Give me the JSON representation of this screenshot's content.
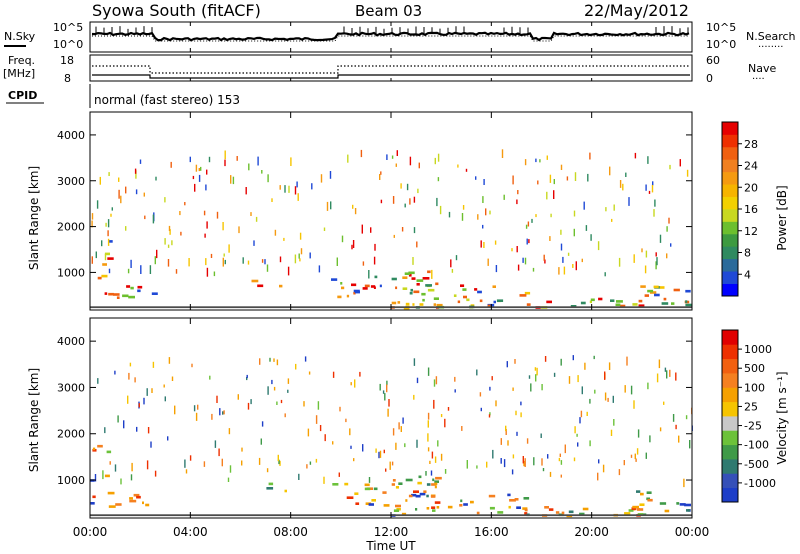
{
  "header": {
    "title_left": "Syowa South (fitACF)",
    "title_center": "Beam 03",
    "title_right": "22/May/2012"
  },
  "top_panels": {
    "nsky_label": "N.Sky",
    "nsearch_label": "N.Search",
    "nsearch_dots": "········",
    "freq_label": "Freq.",
    "freq_unit": "[MHz]",
    "nave_label": "Nave",
    "nave_dots": "····",
    "cpid_label": "CPID",
    "cpid_text": "normal (fast stereo) 153",
    "noise_ticks": [
      "10^5",
      "10^0"
    ],
    "freq_ticks": [
      "18",
      "8"
    ],
    "nave_ticks": [
      "60",
      "0"
    ]
  },
  "chart_data": [
    {
      "type": "heatmap",
      "name": "power",
      "ylabel": "Slant Range [km]",
      "yticks": [
        "1000",
        "2000",
        "3000",
        "4000"
      ],
      "ylim": [
        180,
        4500
      ],
      "colorbar": {
        "label": "Power [dB]",
        "ticks": [
          "4",
          "8",
          "12",
          "16",
          "20",
          "24",
          "28"
        ],
        "colors": [
          "#0000ff",
          "#1f49d6",
          "#2a6a9a",
          "#2f8a60",
          "#3d9a40",
          "#6cbf2e",
          "#c8d820",
          "#f2d000",
          "#f6b400",
          "#f59a10",
          "#f08020",
          "#f06010",
          "#ee3000",
          "#e60000"
        ]
      }
    },
    {
      "type": "heatmap",
      "name": "velocity",
      "ylabel": "Slant Range [km]",
      "yticks": [
        "1000",
        "2000",
        "3000",
        "4000"
      ],
      "ylim": [
        180,
        4500
      ],
      "xlabel": "Time UT",
      "xticks": [
        "00:00",
        "04:00",
        "08:00",
        "12:00",
        "16:00",
        "20:00",
        "00:00"
      ],
      "colorbar": {
        "label": "Velocity [m s⁻¹]",
        "ticks": [
          "1000",
          "500",
          "100",
          "25",
          "-25",
          "-100",
          "-500",
          "-1000"
        ],
        "colors": [
          "#1d3ec8",
          "#3550b8",
          "#2f7a70",
          "#3f9a48",
          "#6cc23a",
          "#c8c8c8",
          "#f6c400",
          "#f5a000",
          "#f58020",
          "#f26010",
          "#ee3000",
          "#e00000"
        ]
      }
    }
  ]
}
